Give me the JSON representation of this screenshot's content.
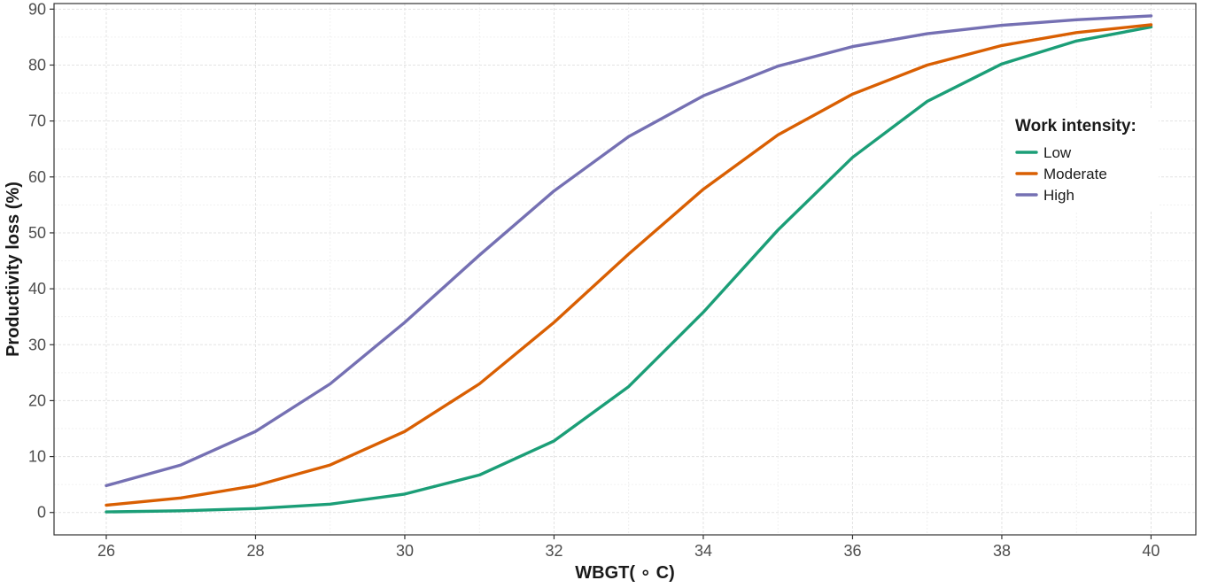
{
  "chart_data": {
    "type": "line",
    "xlabel": "WBGT( ∘ C)",
    "ylabel": "Productivity loss (%)",
    "xlim": [
      25.3,
      40.6
    ],
    "ylim": [
      -4,
      91
    ],
    "xticks": [
      26,
      28,
      30,
      32,
      34,
      36,
      38,
      40
    ],
    "yticks": [
      0,
      10,
      20,
      30,
      40,
      50,
      60,
      70,
      80,
      90
    ],
    "grid": true,
    "legend": {
      "title": "Work intensity:",
      "position": "right"
    },
    "x": [
      26,
      27,
      28,
      29,
      30,
      31,
      32,
      33,
      34,
      35,
      36,
      37,
      38,
      39,
      40
    ],
    "series": [
      {
        "name": "Low",
        "color": "#1b9e77",
        "values": [
          0.1,
          0.3,
          0.7,
          1.5,
          3.3,
          6.7,
          12.8,
          22.5,
          35.8,
          50.5,
          63.5,
          73.5,
          80.2,
          84.3,
          86.8
        ]
      },
      {
        "name": "Moderate",
        "color": "#d95f02",
        "values": [
          1.3,
          2.6,
          4.8,
          8.5,
          14.5,
          23.0,
          34.0,
          46.2,
          57.8,
          67.5,
          74.8,
          80.0,
          83.5,
          85.8,
          87.2
        ]
      },
      {
        "name": "High",
        "color": "#7570b3",
        "values": [
          4.8,
          8.5,
          14.5,
          23.0,
          34.0,
          46.0,
          57.5,
          67.2,
          74.5,
          79.8,
          83.3,
          85.6,
          87.1,
          88.1,
          88.8
        ]
      }
    ]
  }
}
